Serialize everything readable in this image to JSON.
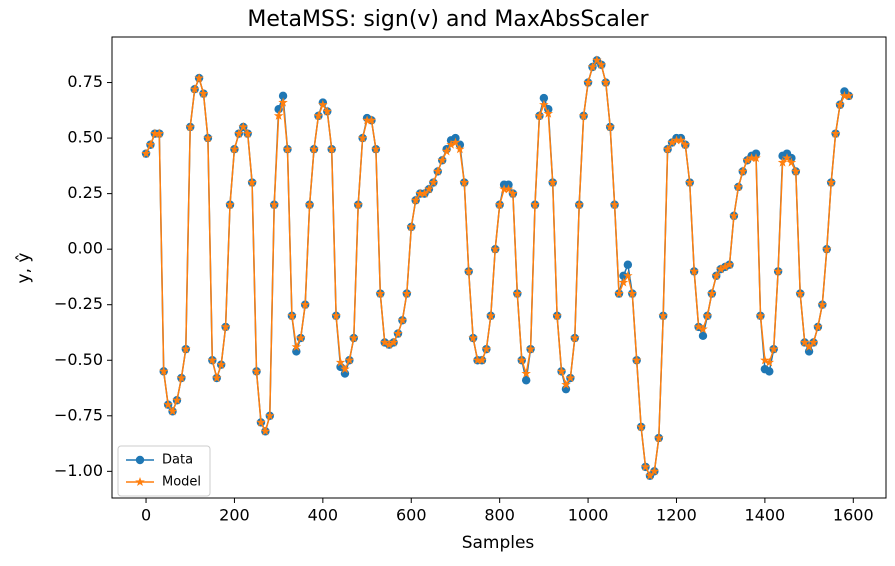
{
  "chart_data": {
    "type": "line",
    "title": "MetaMSS: sign(v) and MaxAbsScaler",
    "xlabel": "Samples",
    "ylabel": "y, ŷ",
    "legend": "lower left",
    "xlim": [
      -77,
      1674
    ],
    "ylim": [
      -1.12,
      0.955
    ],
    "xticks": [
      0,
      200,
      400,
      600,
      800,
      1000,
      1200,
      1400,
      1600
    ],
    "yticks": [
      {
        "value": -1.0,
        "label": "−1.00"
      },
      {
        "value": -0.75,
        "label": "−0.75"
      },
      {
        "value": -0.5,
        "label": "−0.50"
      },
      {
        "value": -0.25,
        "label": "−0.25"
      },
      {
        "value": 0,
        "label": "0.00"
      },
      {
        "value": 0.25,
        "label": "0.25"
      },
      {
        "value": 0.5,
        "label": "0.50"
      },
      {
        "value": 0.75,
        "label": "0.75"
      }
    ],
    "x": [
      0,
      10,
      20,
      30,
      40,
      50,
      60,
      70,
      80,
      90,
      100,
      110,
      120,
      130,
      140,
      150,
      160,
      170,
      180,
      190,
      200,
      210,
      220,
      230,
      240,
      250,
      260,
      270,
      280,
      290,
      300,
      310,
      320,
      330,
      340,
      350,
      360,
      370,
      380,
      390,
      400,
      410,
      420,
      430,
      440,
      450,
      460,
      470,
      480,
      490,
      500,
      510,
      520,
      530,
      540,
      550,
      560,
      570,
      580,
      590,
      600,
      610,
      620,
      630,
      640,
      650,
      660,
      670,
      680,
      690,
      700,
      710,
      720,
      730,
      740,
      750,
      760,
      770,
      780,
      790,
      800,
      810,
      820,
      830,
      840,
      850,
      860,
      870,
      880,
      890,
      900,
      910,
      920,
      930,
      940,
      950,
      960,
      970,
      980,
      990,
      1000,
      1010,
      1020,
      1030,
      1040,
      1050,
      1060,
      1070,
      1080,
      1090,
      1100,
      1110,
      1120,
      1130,
      1140,
      1150,
      1160,
      1170,
      1180,
      1190,
      1200,
      1210,
      1220,
      1230,
      1240,
      1250,
      1260,
      1270,
      1280,
      1290,
      1300,
      1310,
      1320,
      1330,
      1340,
      1350,
      1360,
      1370,
      1380,
      1390,
      1400,
      1410,
      1420,
      1430,
      1440,
      1450,
      1460,
      1470,
      1480,
      1490,
      1500,
      1510,
      1520,
      1530,
      1540,
      1550,
      1560,
      1570,
      1580,
      1590
    ],
    "series": [
      {
        "name": "Data",
        "color": "#1f77b4",
        "marker": "circle",
        "values": [
          0.43,
          0.47,
          0.52,
          0.52,
          -0.55,
          -0.7,
          -0.73,
          -0.68,
          -0.58,
          -0.45,
          0.55,
          0.72,
          0.77,
          0.7,
          0.5,
          -0.5,
          -0.58,
          -0.52,
          -0.35,
          0.2,
          0.45,
          0.52,
          0.55,
          0.52,
          0.3,
          -0.55,
          -0.78,
          -0.82,
          -0.75,
          0.2,
          0.63,
          0.69,
          0.45,
          -0.3,
          -0.46,
          -0.4,
          -0.25,
          0.2,
          0.45,
          0.6,
          0.66,
          0.62,
          0.45,
          -0.3,
          -0.53,
          -0.56,
          -0.5,
          -0.4,
          0.2,
          0.5,
          0.59,
          0.58,
          0.45,
          -0.2,
          -0.42,
          -0.43,
          -0.42,
          -0.38,
          -0.32,
          -0.2,
          0.1,
          0.22,
          0.25,
          0.25,
          0.27,
          0.3,
          0.35,
          0.4,
          0.45,
          0.49,
          0.5,
          0.47,
          0.3,
          -0.1,
          -0.4,
          -0.5,
          -0.5,
          -0.45,
          -0.3,
          0.0,
          0.2,
          0.29,
          0.29,
          0.25,
          -0.2,
          -0.5,
          -0.59,
          -0.45,
          0.2,
          0.6,
          0.68,
          0.63,
          0.3,
          -0.3,
          -0.55,
          -0.63,
          -0.58,
          -0.4,
          0.2,
          0.6,
          0.75,
          0.82,
          0.85,
          0.83,
          0.75,
          0.55,
          0.2,
          -0.2,
          -0.12,
          -0.07,
          -0.2,
          -0.5,
          -0.8,
          -0.98,
          -1.02,
          -1.0,
          -0.85,
          -0.3,
          0.45,
          0.48,
          0.5,
          0.5,
          0.47,
          0.3,
          -0.1,
          -0.35,
          -0.39,
          -0.3,
          -0.2,
          -0.12,
          -0.09,
          -0.08,
          -0.07,
          0.15,
          0.28,
          0.35,
          0.4,
          0.42,
          0.43,
          -0.3,
          -0.54,
          -0.55,
          -0.45,
          -0.1,
          0.42,
          0.43,
          0.41,
          0.35,
          -0.2,
          -0.42,
          -0.46,
          -0.42,
          -0.35,
          -0.25,
          0.0,
          0.3,
          0.52,
          0.65,
          0.71,
          0.69
        ]
      },
      {
        "name": "Model",
        "color": "#ff7f0e",
        "marker": "star",
        "values": [
          0.43,
          0.47,
          0.52,
          0.52,
          -0.55,
          -0.7,
          -0.73,
          -0.68,
          -0.58,
          -0.45,
          0.55,
          0.72,
          0.77,
          0.7,
          0.5,
          -0.5,
          -0.58,
          -0.52,
          -0.35,
          0.2,
          0.45,
          0.52,
          0.55,
          0.52,
          0.3,
          -0.55,
          -0.78,
          -0.82,
          -0.75,
          0.2,
          0.6,
          0.66,
          0.45,
          -0.3,
          -0.44,
          -0.4,
          -0.25,
          0.2,
          0.45,
          0.6,
          0.65,
          0.62,
          0.45,
          -0.3,
          -0.51,
          -0.54,
          -0.5,
          -0.4,
          0.2,
          0.5,
          0.58,
          0.58,
          0.45,
          -0.2,
          -0.42,
          -0.43,
          -0.42,
          -0.38,
          -0.32,
          -0.2,
          0.1,
          0.22,
          0.25,
          0.25,
          0.27,
          0.3,
          0.35,
          0.4,
          0.44,
          0.47,
          0.48,
          0.45,
          0.3,
          -0.1,
          -0.4,
          -0.5,
          -0.5,
          -0.45,
          -0.3,
          0.0,
          0.2,
          0.27,
          0.27,
          0.25,
          -0.2,
          -0.5,
          -0.56,
          -0.45,
          0.2,
          0.6,
          0.65,
          0.61,
          0.3,
          -0.3,
          -0.55,
          -0.61,
          -0.58,
          -0.4,
          0.2,
          0.6,
          0.75,
          0.82,
          0.85,
          0.83,
          0.75,
          0.55,
          0.2,
          -0.2,
          -0.15,
          -0.12,
          -0.2,
          -0.5,
          -0.8,
          -0.98,
          -1.02,
          -1.0,
          -0.85,
          -0.3,
          0.45,
          0.48,
          0.49,
          0.49,
          0.47,
          0.3,
          -0.1,
          -0.35,
          -0.36,
          -0.3,
          -0.2,
          -0.12,
          -0.09,
          -0.08,
          -0.07,
          0.15,
          0.28,
          0.35,
          0.4,
          0.41,
          0.41,
          -0.3,
          -0.5,
          -0.51,
          -0.45,
          -0.1,
          0.39,
          0.41,
          0.39,
          0.35,
          -0.2,
          -0.42,
          -0.44,
          -0.42,
          -0.35,
          -0.25,
          0.0,
          0.3,
          0.52,
          0.65,
          0.69,
          0.69
        ]
      }
    ]
  }
}
